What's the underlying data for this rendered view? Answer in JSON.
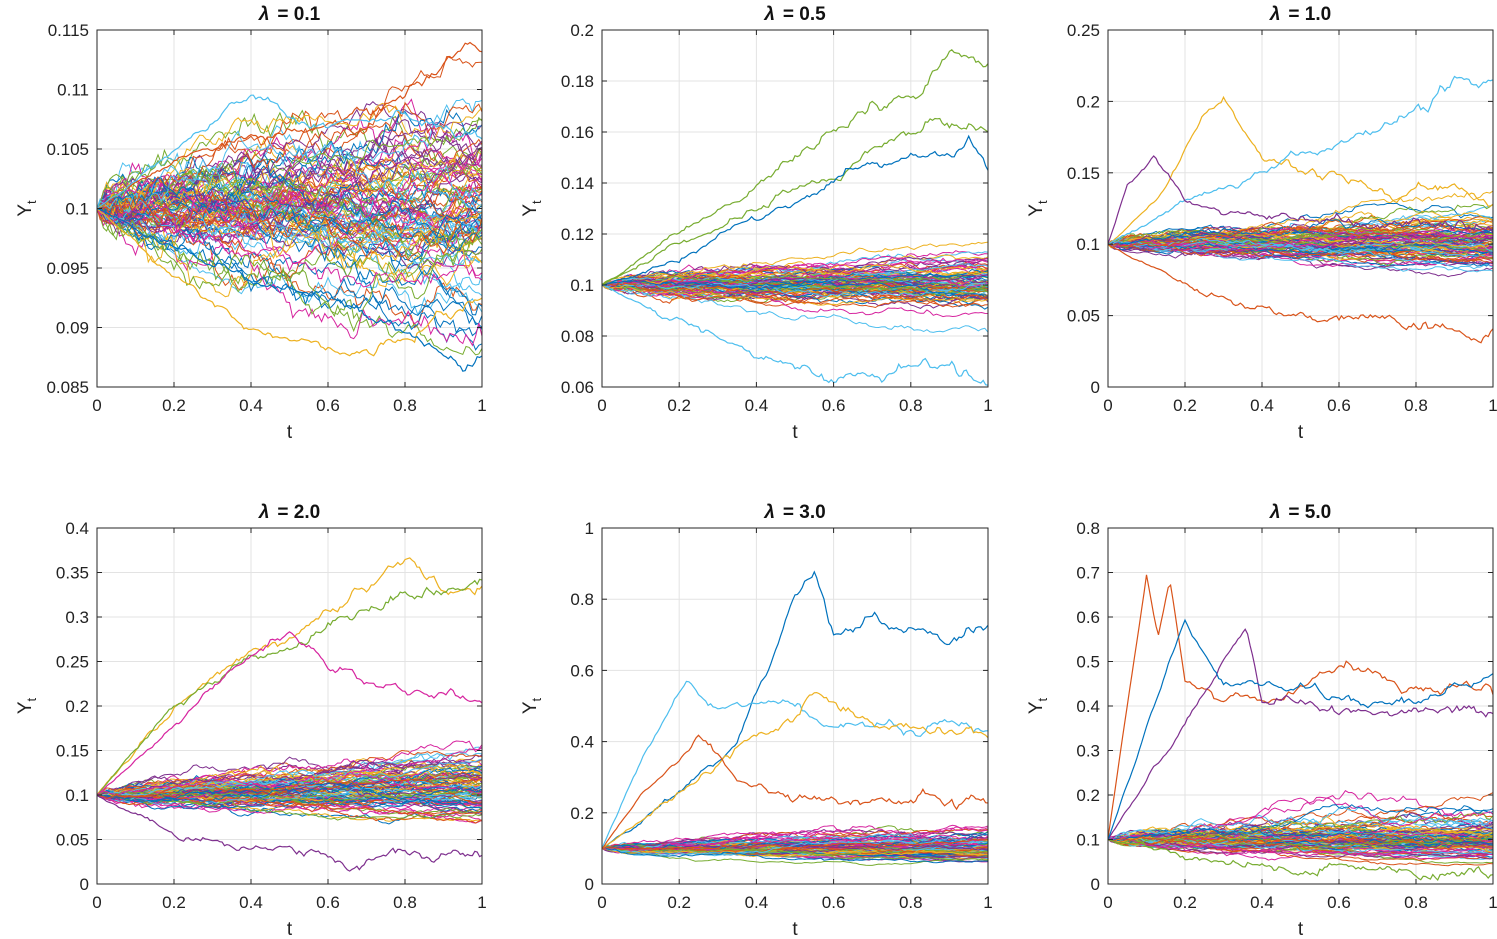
{
  "figure": {
    "palette": [
      "#0072BD",
      "#D95319",
      "#EDB120",
      "#7E2F8E",
      "#77AC30",
      "#4DBEEE",
      "#D6249F"
    ]
  },
  "chart_data": [
    {
      "type": "line",
      "title_symbol": "λ",
      "title_value": "= 0.1",
      "xlabel": "t",
      "ylabel": "Y",
      "ylabel_sub": "t",
      "xlim": [
        0,
        1
      ],
      "ylim": [
        0.085,
        0.115
      ],
      "xticks": [
        "0",
        "0.2",
        "0.4",
        "0.6",
        "0.8",
        "1"
      ],
      "yticks": [
        "0.085",
        "0.09",
        "0.095",
        "0.1",
        "0.105",
        "0.11",
        "0.115"
      ],
      "grid": true,
      "series_count": 100,
      "y0": 0.1,
      "description": "sample paths",
      "highlight_paths": [
        {
          "color": "#D95319",
          "x": [
            0,
            0.2,
            0.4,
            0.6,
            0.8,
            0.95,
            1
          ],
          "y": [
            0.1,
            0.104,
            0.106,
            0.108,
            0.109,
            0.114,
            0.113
          ]
        },
        {
          "color": "#EDB120",
          "x": [
            0,
            0.2,
            0.4,
            0.6,
            0.8,
            1
          ],
          "y": [
            0.1,
            0.094,
            0.09,
            0.088,
            0.089,
            0.092
          ]
        },
        {
          "color": "#4DBEEE",
          "x": [
            0,
            0.2,
            0.4,
            0.6,
            0.8,
            1
          ],
          "y": [
            0.1,
            0.105,
            0.109,
            0.107,
            0.108,
            0.106
          ]
        },
        {
          "color": "#0072BD",
          "x": [
            0,
            0.2,
            0.4,
            0.6,
            0.8,
            0.95,
            1
          ],
          "y": [
            0.1,
            0.097,
            0.094,
            0.092,
            0.09,
            0.087,
            0.088
          ]
        }
      ]
    },
    {
      "type": "line",
      "title_symbol": "λ",
      "title_value": "= 0.5",
      "xlabel": "t",
      "ylabel": "Y",
      "ylabel_sub": "t",
      "xlim": [
        0,
        1
      ],
      "ylim": [
        0.06,
        0.2
      ],
      "xticks": [
        "0",
        "0.2",
        "0.4",
        "0.6",
        "0.8",
        "1"
      ],
      "yticks": [
        "0.06",
        "0.08",
        "0.1",
        "0.12",
        "0.14",
        "0.16",
        "0.18",
        "0.2"
      ],
      "grid": true,
      "series_count": 100,
      "y0": 0.1,
      "description": "sample paths",
      "highlight_paths": [
        {
          "color": "#77AC30",
          "x": [
            0,
            0.2,
            0.4,
            0.6,
            0.8,
            0.9,
            1
          ],
          "y": [
            0.1,
            0.12,
            0.14,
            0.16,
            0.175,
            0.19,
            0.19
          ]
        },
        {
          "color": "#77AC30",
          "x": [
            0,
            0.2,
            0.4,
            0.6,
            0.8,
            1
          ],
          "y": [
            0.1,
            0.115,
            0.13,
            0.145,
            0.165,
            0.162
          ]
        },
        {
          "color": "#0072BD",
          "x": [
            0,
            0.2,
            0.4,
            0.6,
            0.8,
            0.95,
            1
          ],
          "y": [
            0.1,
            0.11,
            0.125,
            0.14,
            0.15,
            0.158,
            0.145
          ]
        },
        {
          "color": "#4DBEEE",
          "x": [
            0,
            0.2,
            0.4,
            0.6,
            0.8,
            1
          ],
          "y": [
            0.1,
            0.085,
            0.072,
            0.063,
            0.07,
            0.066
          ]
        }
      ]
    },
    {
      "type": "line",
      "title_symbol": "λ",
      "title_value": "= 1.0",
      "xlabel": "t",
      "ylabel": "Y",
      "ylabel_sub": "t",
      "xlim": [
        0,
        1
      ],
      "ylim": [
        0,
        0.25
      ],
      "xticks": [
        "0",
        "0.2",
        "0.4",
        "0.6",
        "0.8",
        "1"
      ],
      "yticks": [
        "0",
        "0.05",
        "0.1",
        "0.15",
        "0.2",
        "0.25"
      ],
      "grid": true,
      "series_count": 100,
      "y0": 0.1,
      "description": "sample paths",
      "highlight_paths": [
        {
          "color": "#EDB120",
          "x": [
            0,
            0.15,
            0.25,
            0.3,
            0.4,
            0.6,
            1
          ],
          "y": [
            0.1,
            0.14,
            0.19,
            0.205,
            0.16,
            0.14,
            0.13
          ]
        },
        {
          "color": "#4DBEEE",
          "x": [
            0,
            0.2,
            0.4,
            0.6,
            0.8,
            0.9,
            1
          ],
          "y": [
            0.1,
            0.13,
            0.15,
            0.17,
            0.19,
            0.215,
            0.215
          ]
        },
        {
          "color": "#D95319",
          "x": [
            0,
            0.2,
            0.4,
            0.6,
            0.8,
            1
          ],
          "y": [
            0.1,
            0.07,
            0.055,
            0.05,
            0.045,
            0.04
          ]
        },
        {
          "color": "#7E2F8E",
          "x": [
            0,
            0.05,
            0.12,
            0.2,
            0.4,
            1
          ],
          "y": [
            0.1,
            0.14,
            0.16,
            0.13,
            0.12,
            0.11
          ]
        }
      ]
    },
    {
      "type": "line",
      "title_symbol": "λ",
      "title_value": "= 2.0",
      "xlabel": "t",
      "ylabel": "Y",
      "ylabel_sub": "t",
      "xlim": [
        0,
        1
      ],
      "ylim": [
        0,
        0.4
      ],
      "xticks": [
        "0",
        "0.2",
        "0.4",
        "0.6",
        "0.8",
        "1"
      ],
      "yticks": [
        "0",
        "0.05",
        "0.1",
        "0.15",
        "0.2",
        "0.25",
        "0.3",
        "0.35",
        "0.4"
      ],
      "grid": true,
      "series_count": 100,
      "y0": 0.1,
      "description": "sample paths",
      "highlight_paths": [
        {
          "color": "#EDB120",
          "x": [
            0,
            0.2,
            0.4,
            0.6,
            0.8,
            0.9,
            1
          ],
          "y": [
            0.1,
            0.2,
            0.26,
            0.3,
            0.36,
            0.33,
            0.34
          ]
        },
        {
          "color": "#77AC30",
          "x": [
            0,
            0.2,
            0.4,
            0.6,
            0.8,
            1
          ],
          "y": [
            0.1,
            0.2,
            0.25,
            0.29,
            0.32,
            0.35
          ]
        },
        {
          "color": "#7E2F8E",
          "x": [
            0,
            0.2,
            0.4,
            0.6,
            0.8,
            1
          ],
          "y": [
            0.1,
            0.055,
            0.035,
            0.03,
            0.03,
            0.032
          ]
        },
        {
          "color": "#D6249F",
          "x": [
            0,
            0.2,
            0.4,
            0.5,
            0.6,
            0.8,
            1
          ],
          "y": [
            0.1,
            0.18,
            0.25,
            0.28,
            0.24,
            0.22,
            0.2
          ]
        }
      ]
    },
    {
      "type": "line",
      "title_symbol": "λ",
      "title_value": "= 3.0",
      "xlabel": "t",
      "ylabel": "Y",
      "ylabel_sub": "t",
      "xlim": [
        0,
        1
      ],
      "ylim": [
        0,
        1
      ],
      "xticks": [
        "0",
        "0.2",
        "0.4",
        "0.6",
        "0.8",
        "1"
      ],
      "yticks": [
        "0",
        "0.2",
        "0.4",
        "0.6",
        "0.8",
        "1"
      ],
      "grid": true,
      "series_count": 100,
      "y0": 0.1,
      "description": "sample paths",
      "highlight_paths": [
        {
          "color": "#0072BD",
          "x": [
            0,
            0.2,
            0.35,
            0.45,
            0.5,
            0.55,
            0.6,
            0.7,
            0.8,
            0.9,
            1
          ],
          "y": [
            0.1,
            0.25,
            0.4,
            0.65,
            0.8,
            0.87,
            0.7,
            0.75,
            0.7,
            0.67,
            0.72
          ]
        },
        {
          "color": "#4DBEEE",
          "x": [
            0,
            0.1,
            0.22,
            0.3,
            0.45,
            0.6,
            0.8,
            1
          ],
          "y": [
            0.1,
            0.35,
            0.58,
            0.48,
            0.52,
            0.46,
            0.44,
            0.42
          ]
        },
        {
          "color": "#EDB120",
          "x": [
            0,
            0.2,
            0.4,
            0.55,
            0.7,
            0.85,
            1
          ],
          "y": [
            0.1,
            0.25,
            0.4,
            0.52,
            0.46,
            0.44,
            0.43
          ]
        },
        {
          "color": "#D95319",
          "x": [
            0,
            0.1,
            0.2,
            0.25,
            0.35,
            0.5,
            1
          ],
          "y": [
            0.1,
            0.25,
            0.35,
            0.42,
            0.3,
            0.25,
            0.22
          ]
        }
      ]
    },
    {
      "type": "line",
      "title_symbol": "λ",
      "title_value": "= 5.0",
      "xlabel": "t",
      "ylabel": "Y",
      "ylabel_sub": "t",
      "xlim": [
        0,
        1
      ],
      "ylim": [
        0,
        0.8
      ],
      "xticks": [
        "0",
        "0.2",
        "0.4",
        "0.6",
        "0.8",
        "1"
      ],
      "yticks": [
        "0",
        "0.1",
        "0.2",
        "0.3",
        "0.4",
        "0.5",
        "0.6",
        "0.7",
        "0.8"
      ],
      "grid": true,
      "series_count": 100,
      "y0": 0.1,
      "description": "sample paths",
      "highlight_paths": [
        {
          "color": "#D95319",
          "x": [
            0,
            0.05,
            0.1,
            0.13,
            0.16,
            0.2,
            0.3,
            0.45,
            0.62,
            0.8,
            1
          ],
          "y": [
            0.1,
            0.4,
            0.7,
            0.55,
            0.68,
            0.45,
            0.42,
            0.4,
            0.5,
            0.44,
            0.43
          ]
        },
        {
          "color": "#7E2F8E",
          "x": [
            0,
            0.15,
            0.3,
            0.36,
            0.4,
            0.5,
            0.7,
            1
          ],
          "y": [
            0.1,
            0.3,
            0.5,
            0.58,
            0.42,
            0.4,
            0.38,
            0.38
          ]
        },
        {
          "color": "#0072BD",
          "x": [
            0,
            0.1,
            0.2,
            0.3,
            0.5,
            0.7,
            1
          ],
          "y": [
            0.1,
            0.35,
            0.6,
            0.45,
            0.43,
            0.42,
            0.44
          ]
        },
        {
          "color": "#77AC30",
          "x": [
            0,
            0.2,
            0.4,
            0.6,
            1
          ],
          "y": [
            0.1,
            0.06,
            0.04,
            0.03,
            0.02
          ]
        }
      ]
    }
  ]
}
